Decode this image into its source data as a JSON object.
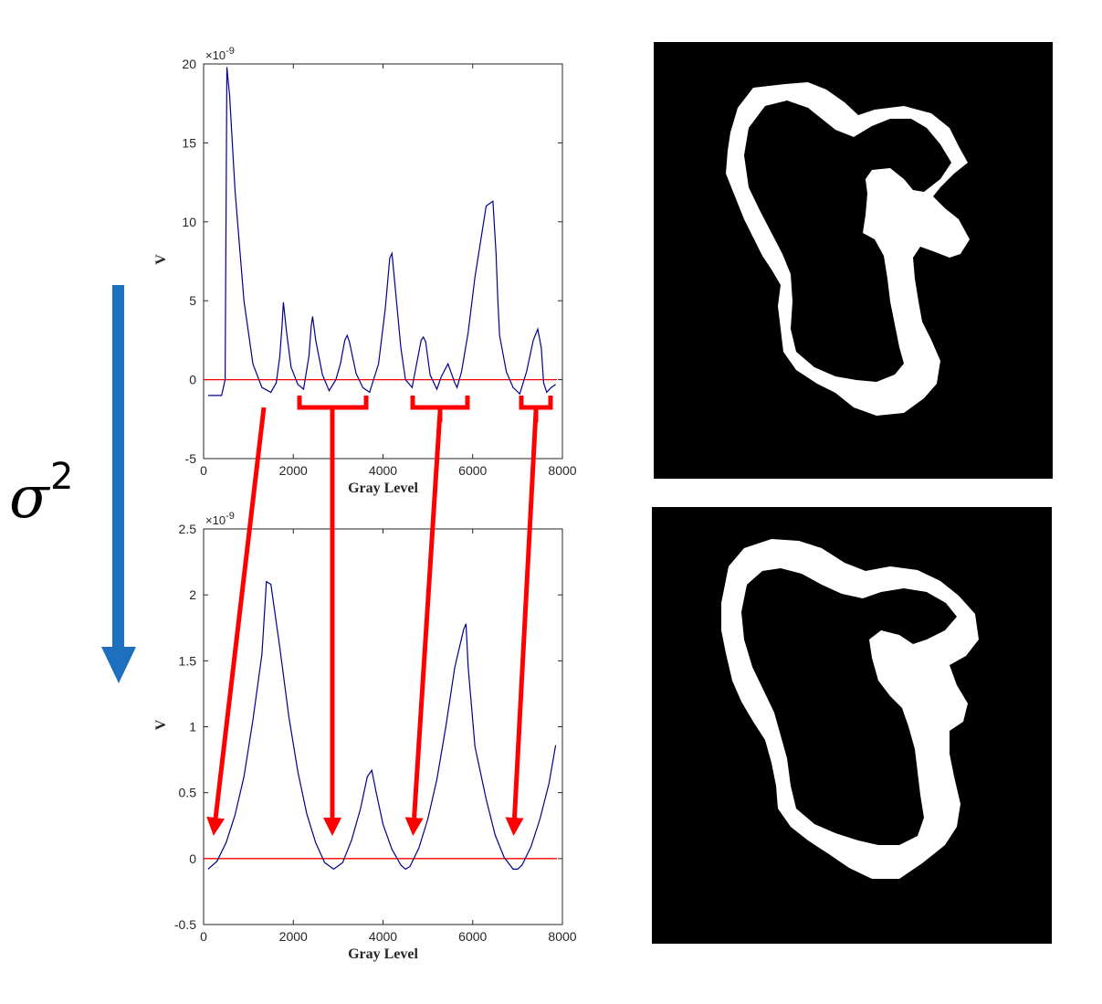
{
  "annotation": {
    "symbol": "σ",
    "superscript": "2"
  },
  "colors": {
    "curve": "#00008b",
    "zero_line": "#ff0000",
    "arrow_red": "#ff0000",
    "arrow_blue": "#1f6fbf",
    "axes": "#262626"
  },
  "chart_data": [
    {
      "type": "line",
      "xlabel": "Gray Level",
      "ylabel": "V",
      "exponent_label": "×10",
      "exponent_power": "-9",
      "xlim": [
        0,
        8000
      ],
      "ylim": [
        -5,
        20
      ],
      "xticks": [
        "0",
        "2000",
        "4000",
        "6000",
        "8000"
      ],
      "yticks": [
        "-5",
        "0",
        "5",
        "10",
        "15",
        "20"
      ],
      "grid": false,
      "reference_line_y": 0,
      "series": [
        {
          "x": [
            100,
            400,
            480,
            520,
            580,
            700,
            900,
            1100,
            1300,
            1500,
            1620,
            1700,
            1750,
            1780,
            1850,
            1950,
            2100,
            2230,
            2350,
            2400,
            2430,
            2500,
            2650,
            2800,
            2950,
            3050,
            3150,
            3200,
            3250,
            3400,
            3550,
            3700,
            3900,
            4050,
            4150,
            4200,
            4250,
            4400,
            4500,
            4650,
            4750,
            4850,
            4900,
            4950,
            5050,
            5200,
            5300,
            5450,
            5550,
            5600,
            5650,
            5750,
            5900,
            6050,
            6300,
            6450,
            6520,
            6560,
            6600,
            6750,
            6900,
            7050,
            7200,
            7350,
            7450,
            7530,
            7580,
            7650,
            7750,
            7850
          ],
          "y": [
            -1.0,
            -1.0,
            0.0,
            19.8,
            18.0,
            12.0,
            5.0,
            1.0,
            -0.5,
            -0.8,
            -0.2,
            1.5,
            3.5,
            4.9,
            3.0,
            0.8,
            -0.3,
            -0.6,
            1.5,
            3.4,
            4.0,
            2.5,
            0.3,
            -0.7,
            0.0,
            1.0,
            2.5,
            2.8,
            2.4,
            0.4,
            -0.5,
            -0.8,
            1.0,
            4.5,
            7.7,
            8.0,
            6.5,
            2.0,
            0.0,
            -0.5,
            1.0,
            2.5,
            2.7,
            2.4,
            0.3,
            -0.6,
            0.2,
            1.0,
            0.2,
            -0.2,
            -0.5,
            0.5,
            3.0,
            6.5,
            11.0,
            11.3,
            8.0,
            5.0,
            2.8,
            0.5,
            -0.5,
            -0.9,
            0.5,
            2.5,
            3.2,
            2.0,
            -0.2,
            -0.8,
            -0.5,
            -0.3
          ]
        }
      ]
    },
    {
      "type": "line",
      "xlabel": "Gray Level",
      "ylabel": "V",
      "exponent_label": "×10",
      "exponent_power": "-9",
      "xlim": [
        0,
        8000
      ],
      "ylim": [
        -0.5,
        2.5
      ],
      "xticks": [
        "0",
        "2000",
        "4000",
        "6000",
        "8000"
      ],
      "yticks": [
        "-0.5",
        "0",
        "0.5",
        "1",
        "1.5",
        "2",
        "2.5"
      ],
      "grid": false,
      "reference_line_y": 0,
      "series": [
        {
          "x": [
            100,
            300,
            500,
            700,
            900,
            1100,
            1300,
            1400,
            1500,
            1700,
            1900,
            2100,
            2300,
            2500,
            2700,
            2900,
            3100,
            3300,
            3500,
            3650,
            3750,
            3850,
            4000,
            4200,
            4400,
            4500,
            4600,
            4800,
            5000,
            5200,
            5400,
            5600,
            5800,
            5850,
            5900,
            6050,
            6300,
            6500,
            6700,
            6900,
            7000,
            7100,
            7300,
            7500,
            7700,
            7850
          ],
          "y": [
            -0.08,
            -0.02,
            0.12,
            0.33,
            0.62,
            1.05,
            1.55,
            2.1,
            2.08,
            1.6,
            1.08,
            0.66,
            0.34,
            0.12,
            -0.03,
            -0.08,
            -0.03,
            0.14,
            0.38,
            0.62,
            0.67,
            0.5,
            0.26,
            0.07,
            -0.05,
            -0.08,
            -0.06,
            0.08,
            0.3,
            0.6,
            1.0,
            1.45,
            1.74,
            1.78,
            1.45,
            0.85,
            0.45,
            0.18,
            0.01,
            -0.08,
            -0.08,
            -0.05,
            0.09,
            0.3,
            0.57,
            0.86
          ]
        }
      ]
    }
  ]
}
